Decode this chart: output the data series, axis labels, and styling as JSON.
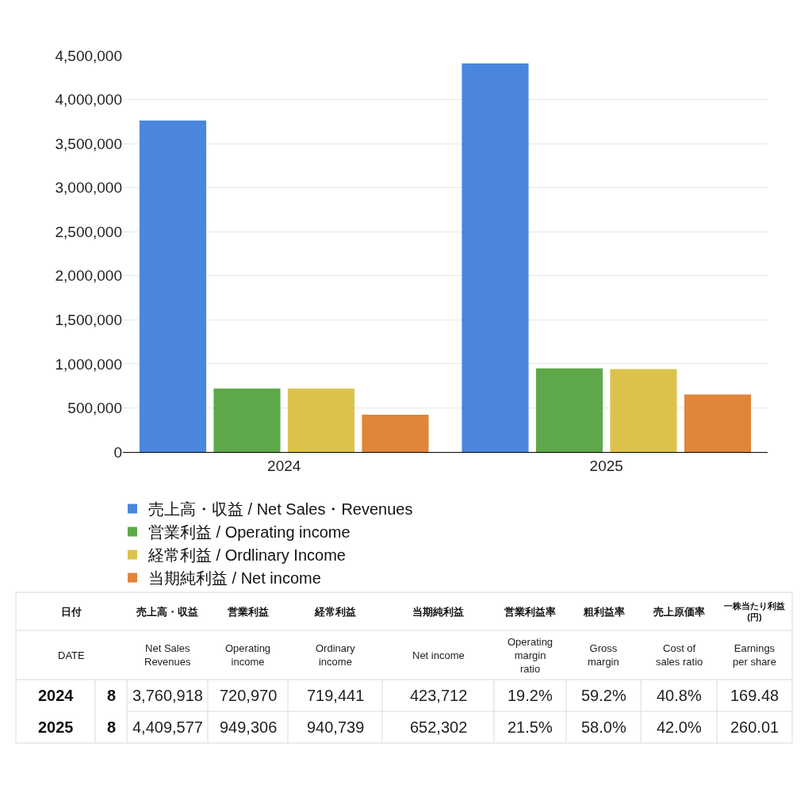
{
  "chart_data": [
    {
      "type": "bar",
      "categories": [
        "2024",
        "2025"
      ],
      "series": [
        {
          "name": "売上高・収益 / Net Sales・Revenues",
          "color": "#4a86de",
          "values": [
            3760918,
            4409577
          ]
        },
        {
          "name": "営業利益 / Operating income",
          "color": "#5ea84a",
          "values": [
            720970,
            949306
          ]
        },
        {
          "name": "経常利益 / Ordlinary Income",
          "color": "#dcc24c",
          "values": [
            719441,
            940739
          ]
        },
        {
          "name": "当期純利益 / Net income",
          "color": "#e0853a",
          "values": [
            423712,
            652302
          ]
        }
      ],
      "ylim": [
        0,
        4500000
      ],
      "yticks": [
        0,
        {
          "value": 500000,
          "label": "500,000"
        },
        {
          "value": 1000000,
          "label": "1,000,000"
        },
        {
          "value": 1500000,
          "label": "1,500,000"
        },
        {
          "value": 2000000,
          "label": "2,000,000"
        },
        {
          "value": 2500000,
          "label": "2,500,000"
        },
        {
          "value": 3000000,
          "label": "3,000,000"
        },
        {
          "value": 3500000,
          "label": "3,500,000"
        },
        {
          "value": 4000000,
          "label": "4,000,000"
        },
        {
          "value": 4500000,
          "label": "4,500,000"
        }
      ],
      "grid": "y",
      "legend": "bottom left"
    },
    {
      "type": "other",
      "ylabel": "日付\n\nDATE",
      "categories": [
        "売上高・収益\n\nNet Sales\nRevenues",
        "営業利益\n\nOperating\nincome",
        "経常利益\n\nOrdinary\nincome",
        "当期純利益\n\nNet income",
        "営業利益率\n\nOperating\nmargin\nratio",
        "粗利益率\n\nGross\nmargin",
        "売上原価率\n\nCost of\nsales ratio",
        "一株当たり利益\n(円)\n\nEarnings\nper share"
      ],
      "y_categories": [
        "2024",
        "2025"
      ],
      "y2_categories": [
        "8",
        "8"
      ],
      "cell_labels": [
        [
          "3,760,918",
          "720,970",
          "719,441",
          "423,712",
          "19.2%",
          "59.2%",
          "40.8%",
          "169.48"
        ],
        [
          "4,409,577",
          "949,306",
          "940,739",
          "652,302",
          "21.5%",
          "58.0%",
          "42.0%",
          "260.01"
        ]
      ]
    }
  ]
}
